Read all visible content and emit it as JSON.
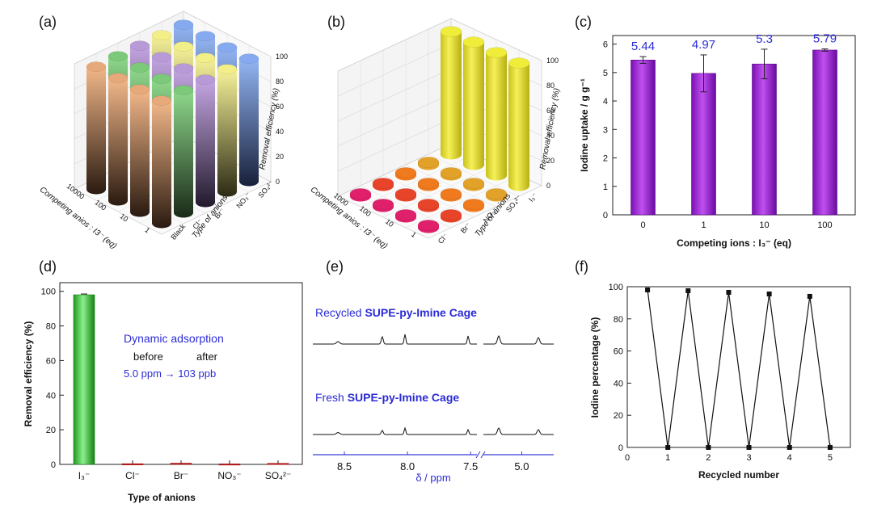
{
  "chart_data": [
    {
      "panel": "(a)",
      "type": "bar3d",
      "zlabel": "Removal efficiency (%)",
      "xlabel": "Type of anions",
      "ylabel": "Competing anios : I3⁻ (eq)",
      "zticks": [
        "0",
        "20",
        "40",
        "60",
        "80",
        "100"
      ],
      "x_categories": [
        "Black",
        "Cl⁻",
        "Br⁻",
        "NO₃⁻",
        "SO₄²⁻"
      ],
      "y_categories": [
        "1",
        "10",
        "100",
        "10000"
      ],
      "values": [
        [
          98,
          98,
          98,
          98
        ],
        [
          98,
          98,
          98,
          98
        ],
        [
          98,
          98,
          98,
          98
        ],
        [
          98,
          98,
          98,
          98
        ],
        [
          98,
          98,
          98,
          98
        ]
      ],
      "colors": [
        "#e8a97a",
        "#7cc97a",
        "#b99ad8",
        "#f2ee88",
        "#86aaf0"
      ]
    },
    {
      "panel": "(b)",
      "type": "bar3d",
      "zlabel": "Removal efficiency (%)",
      "xlabel": "Type of anions",
      "ylabel": "Competing anios : I3⁻ (eq)",
      "zticks": [
        "0",
        "20",
        "40",
        "60",
        "80",
        "100"
      ],
      "x_categories": [
        "Cl⁻",
        "Br⁻",
        "NO₃⁻",
        "SO₄²⁻",
        "I₃⁻"
      ],
      "y_categories": [
        "1",
        "10",
        "100",
        "1000"
      ],
      "values": [
        [
          2,
          2,
          2,
          2
        ],
        [
          2,
          2,
          2,
          2
        ],
        [
          2,
          2,
          2,
          2
        ],
        [
          2,
          2,
          2,
          2
        ],
        [
          98,
          98,
          98,
          98
        ]
      ],
      "colors": [
        "#e0206a",
        "#e8442a",
        "#f07a1e",
        "#e2a22a",
        "#f0ec3a"
      ]
    },
    {
      "panel": "(c)",
      "type": "bar",
      "categories": [
        "0",
        "1",
        "10",
        "100"
      ],
      "values": [
        5.44,
        4.97,
        5.3,
        5.79
      ],
      "errors": [
        0.12,
        0.65,
        0.52,
        0.04
      ],
      "labels": [
        "5.44",
        "4.97",
        "5.3",
        "5.79"
      ],
      "xlabel": "Competing ions : I₃⁻ (eq)",
      "ylabel": "Iodine uptake / g g⁻¹",
      "ylim": [
        0,
        6.3
      ],
      "yticks": [
        0,
        1,
        2,
        3,
        4,
        5,
        6
      ],
      "color": "#a020e0"
    },
    {
      "panel": "(d)",
      "type": "bar",
      "categories": [
        "I₃⁻",
        "Cl⁻",
        "Br⁻",
        "NO₃⁻",
        "SO₄²⁻"
      ],
      "values": [
        98,
        0.4,
        0.7,
        0.3,
        0.6
      ],
      "xlabel": "Type of anions",
      "ylabel": "Removal efficiency (%)",
      "ylim": [
        0,
        105
      ],
      "yticks": [
        0,
        20,
        40,
        60,
        80,
        100
      ],
      "colors": [
        "#4ad84a",
        "#d41e1e",
        "#d41e1e",
        "#d41e1e",
        "#d41e1e"
      ],
      "annotation": {
        "title": "Dynamic adsorption",
        "before": "before",
        "after": "after",
        "line": "5.0 ppm → 103 ppb"
      }
    },
    {
      "panel": "(e)",
      "type": "spectrum",
      "xlabel": "δ / ppm",
      "xticks": [
        "8.5",
        "8.0",
        "7.5",
        "5.0"
      ],
      "traces": [
        {
          "prefix": "Recycled ",
          "bold": "SUPE-py-Imine Cage"
        },
        {
          "prefix": "Fresh ",
          "bold": "SUPE-py-Imine Cage"
        }
      ]
    },
    {
      "panel": "(f)",
      "type": "line",
      "x": [
        0.5,
        1,
        1.5,
        2,
        2.5,
        3,
        3.5,
        4,
        4.5,
        5
      ],
      "y": [
        98,
        0,
        97.5,
        0,
        96.5,
        0,
        95.5,
        0,
        94,
        0
      ],
      "xlabel": "Recycled number",
      "ylabel": "Iodine percentage (%)",
      "xlim": [
        0,
        5.5
      ],
      "ylim": [
        0,
        100
      ],
      "xticks": [
        0,
        1,
        2,
        3,
        4,
        5
      ],
      "yticks": [
        0,
        20,
        40,
        60,
        80,
        100
      ]
    }
  ]
}
